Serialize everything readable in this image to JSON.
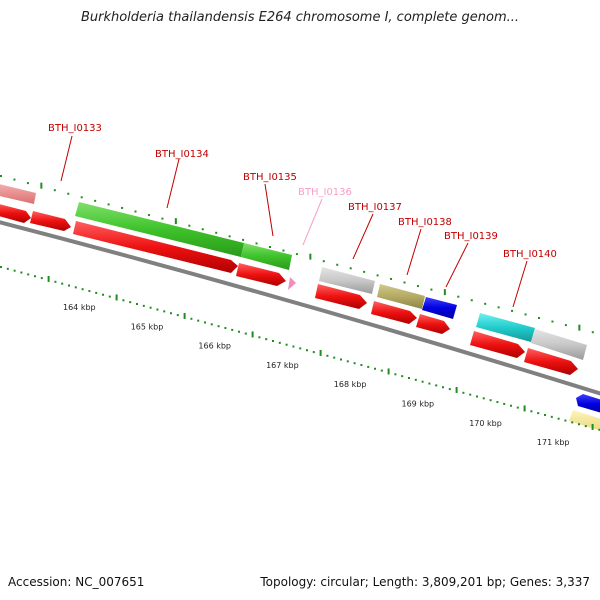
{
  "map": {
    "title": "Burkholderia thailandensis E264 chromosome I, complete genom...",
    "accession": "Accession: NC_007651",
    "summary": "Topology: circular; Length: 3,809,201 bp; Genes: 3,337"
  },
  "genes": [
    {
      "label": "BTH_I0133",
      "color": "#c00000"
    },
    {
      "label": "BTH_I0134",
      "color": "#c00000"
    },
    {
      "label": "BTH_I0135",
      "color": "#c00000"
    },
    {
      "label": "BTH_I0136",
      "color": "#f4a0c8"
    },
    {
      "label": "BTH_I0137",
      "color": "#c00000"
    },
    {
      "label": "BTH_I0138",
      "color": "#c00000"
    },
    {
      "label": "BTH_I0139",
      "color": "#c00000"
    },
    {
      "label": "BTH_I0140",
      "color": "#c00000"
    }
  ],
  "ticks": [
    "164 kbp",
    "165 kbp",
    "166 kbp",
    "167 kbp",
    "168 kbp",
    "169 kbp",
    "170 kbp",
    "171 kbp"
  ],
  "colors": {
    "cds": "#ee1111",
    "backbone": "#808080",
    "tick": "#228b22",
    "label": "#c00000"
  }
}
